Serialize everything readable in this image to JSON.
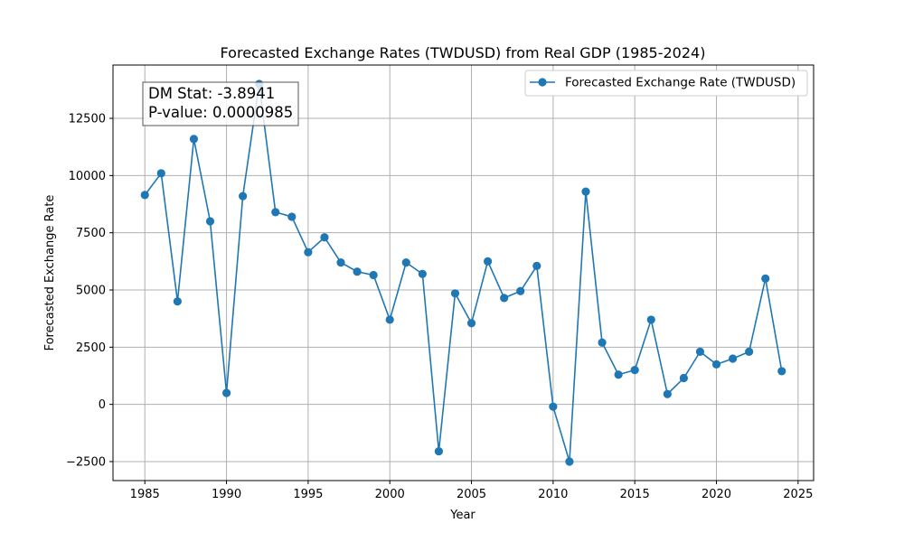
{
  "chart_data": {
    "type": "line",
    "title": "Forecasted Exchange Rates (TWDUSD) from Real GDP (1985-2024)",
    "xlabel": "Year",
    "ylabel": "Forecasted Exchange Rate",
    "xlim": [
      1983.05,
      2025.95
    ],
    "ylim": [
      -3330,
      14830
    ],
    "xticks": [
      1985,
      1990,
      1995,
      2000,
      2005,
      2010,
      2015,
      2020,
      2025
    ],
    "yticks": [
      -2500,
      0,
      2500,
      5000,
      7500,
      10000,
      12500
    ],
    "ytick_labels": [
      "−2500",
      "0",
      "2500",
      "5000",
      "7500",
      "10000",
      "12500"
    ],
    "grid": true,
    "legend_position": "top-right",
    "series": [
      {
        "name": "Forecasted Exchange Rate (TWDUSD)",
        "color": "#1f77b4",
        "marker": "circle",
        "x": [
          1985,
          1986,
          1987,
          1988,
          1989,
          1990,
          1991,
          1992,
          1993,
          1994,
          1995,
          1996,
          1997,
          1998,
          1999,
          2000,
          2001,
          2002,
          2003,
          2004,
          2005,
          2006,
          2007,
          2008,
          2009,
          2010,
          2011,
          2012,
          2013,
          2014,
          2015,
          2016,
          2017,
          2018,
          2019,
          2020,
          2021,
          2022,
          2023,
          2024
        ],
        "y": [
          9150,
          10100,
          4500,
          11600,
          8000,
          500,
          9100,
          14000,
          8400,
          8200,
          6650,
          7300,
          6200,
          5800,
          5650,
          3700,
          6200,
          5700,
          -2050,
          4850,
          3550,
          6250,
          4650,
          4950,
          6050,
          -100,
          -2500,
          9300,
          2700,
          1300,
          1500,
          3700,
          450,
          1150,
          2300,
          1750,
          2000,
          2300,
          5500,
          1450
        ]
      }
    ],
    "annotation": {
      "line1": "DM Stat: -3.8941",
      "line2": "P-value: 0.0000985"
    }
  }
}
